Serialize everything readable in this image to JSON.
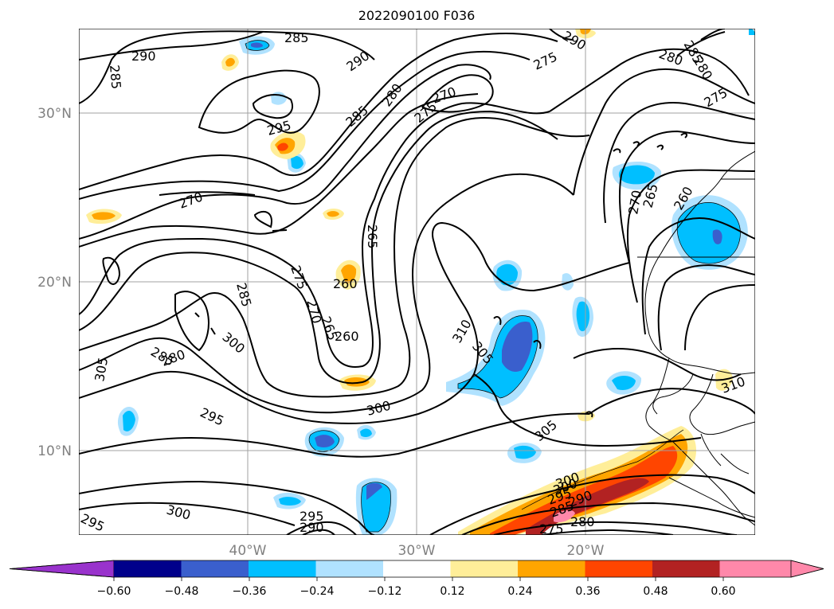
{
  "title": "2022090100 F036",
  "map": {
    "lat_ticks": [
      "30°N",
      "20°N",
      "10°N"
    ],
    "lon_ticks": [
      "40°W",
      "30°W",
      "20°W"
    ],
    "contour_labels": [
      "290",
      "285",
      "290",
      "285",
      "280",
      "275",
      "270",
      "295",
      "270",
      "265",
      "285",
      "275",
      "260",
      "285",
      "270",
      "265",
      "260",
      "275",
      "285",
      "280",
      "305",
      "300",
      "300",
      "310",
      "305",
      "295",
      "300",
      "305",
      "295",
      "300",
      "295",
      "290",
      "300",
      "295",
      "290",
      "285",
      "280",
      "275",
      "265",
      "260",
      "270",
      "275",
      "280",
      "310",
      "290",
      "285",
      "280"
    ]
  },
  "colorbar": {
    "ticks": [
      "−0.60",
      "−0.48",
      "−0.36",
      "−0.24",
      "−0.12",
      "0.12",
      "0.24",
      "0.36",
      "0.48",
      "0.60"
    ],
    "colors": [
      "#9933cc",
      "#00008b",
      "#3a5fcd",
      "#00bfff",
      "#b0e2ff",
      "#ffffff",
      "#ffee99",
      "#ffa500",
      "#ff4500",
      "#b22222",
      "#ff88aa"
    ]
  }
}
